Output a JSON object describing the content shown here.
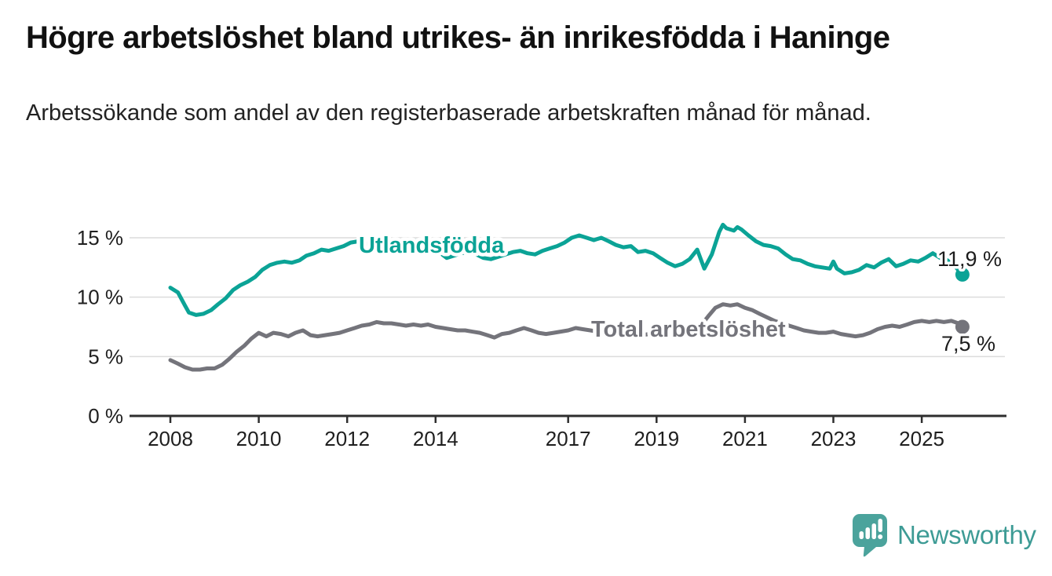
{
  "header": {
    "title": "Högre arbetslöshet bland utrikes- än inrikesfödda i Haninge",
    "subtitle": "Arbetssökande som andel av den registerbaserade arbetskraften månad för månad."
  },
  "footer": {
    "brand": "Newsworthy",
    "brand_color": "#3d9b95",
    "logo_icon": "bar-chart-speech-bubble"
  },
  "chart_data": {
    "type": "line",
    "title": "Högre arbetslöshet bland utrikes- än inrikesfödda i Haninge",
    "subtitle": "Arbetssökande som andel av den registerbaserade arbetskraften månad för månad.",
    "grid": true,
    "legend": "inline-labels",
    "x_axis": {
      "ticks": [
        2008,
        2010,
        2012,
        2014,
        2017,
        2019,
        2021,
        2023,
        2025
      ],
      "range": [
        2008,
        2026
      ]
    },
    "y_axis": {
      "unit": "%",
      "ticks": [
        0,
        5,
        10,
        15
      ],
      "tick_labels": [
        "0 %",
        "5 %",
        "10 %",
        "15 %"
      ],
      "range": [
        0,
        16.5
      ]
    },
    "series": [
      {
        "name": "Utlandsfödda",
        "color": "#0ba396",
        "end_value": 11.9,
        "end_label": "11,9 %",
        "points": [
          [
            2008.0,
            10.8
          ],
          [
            2008.17,
            10.4
          ],
          [
            2008.33,
            9.3
          ],
          [
            2008.42,
            8.7
          ],
          [
            2008.58,
            8.5
          ],
          [
            2008.75,
            8.6
          ],
          [
            2008.92,
            8.9
          ],
          [
            2009.08,
            9.4
          ],
          [
            2009.25,
            9.9
          ],
          [
            2009.42,
            10.6
          ],
          [
            2009.58,
            11.0
          ],
          [
            2009.75,
            11.3
          ],
          [
            2009.92,
            11.7
          ],
          [
            2010.08,
            12.3
          ],
          [
            2010.25,
            12.7
          ],
          [
            2010.42,
            12.9
          ],
          [
            2010.58,
            13.0
          ],
          [
            2010.75,
            12.9
          ],
          [
            2010.92,
            13.1
          ],
          [
            2011.08,
            13.5
          ],
          [
            2011.25,
            13.7
          ],
          [
            2011.42,
            14.0
          ],
          [
            2011.58,
            13.9
          ],
          [
            2011.75,
            14.1
          ],
          [
            2011.92,
            14.3
          ],
          [
            2012.08,
            14.6
          ],
          [
            2012.25,
            14.7
          ],
          [
            2012.42,
            14.5
          ],
          [
            2012.58,
            14.6
          ],
          [
            2012.75,
            14.5
          ],
          [
            2012.92,
            14.6
          ],
          [
            2013.08,
            14.7
          ],
          [
            2013.25,
            14.6
          ],
          [
            2013.42,
            14.8
          ],
          [
            2013.58,
            14.7
          ],
          [
            2013.75,
            14.5
          ],
          [
            2013.92,
            14.3
          ],
          [
            2014.08,
            13.8
          ],
          [
            2014.25,
            13.3
          ],
          [
            2014.42,
            13.5
          ],
          [
            2014.58,
            13.7
          ],
          [
            2014.75,
            13.8
          ],
          [
            2014.92,
            13.6
          ],
          [
            2015.08,
            13.3
          ],
          [
            2015.25,
            13.2
          ],
          [
            2015.42,
            13.4
          ],
          [
            2015.58,
            13.6
          ],
          [
            2015.75,
            13.8
          ],
          [
            2015.92,
            13.9
          ],
          [
            2016.08,
            13.7
          ],
          [
            2016.25,
            13.6
          ],
          [
            2016.42,
            13.9
          ],
          [
            2016.58,
            14.1
          ],
          [
            2016.75,
            14.3
          ],
          [
            2016.92,
            14.6
          ],
          [
            2017.08,
            15.0
          ],
          [
            2017.25,
            15.2
          ],
          [
            2017.42,
            15.0
          ],
          [
            2017.58,
            14.8
          ],
          [
            2017.75,
            15.0
          ],
          [
            2017.92,
            14.7
          ],
          [
            2018.08,
            14.4
          ],
          [
            2018.25,
            14.2
          ],
          [
            2018.42,
            14.3
          ],
          [
            2018.58,
            13.8
          ],
          [
            2018.75,
            13.9
          ],
          [
            2018.92,
            13.7
          ],
          [
            2019.08,
            13.3
          ],
          [
            2019.25,
            12.9
          ],
          [
            2019.42,
            12.6
          ],
          [
            2019.58,
            12.8
          ],
          [
            2019.75,
            13.2
          ],
          [
            2019.92,
            14.0
          ],
          [
            2020.08,
            12.4
          ],
          [
            2020.25,
            13.6
          ],
          [
            2020.42,
            15.5
          ],
          [
            2020.5,
            16.1
          ],
          [
            2020.58,
            15.8
          ],
          [
            2020.75,
            15.6
          ],
          [
            2020.83,
            15.9
          ],
          [
            2020.92,
            15.7
          ],
          [
            2021.08,
            15.2
          ],
          [
            2021.25,
            14.7
          ],
          [
            2021.42,
            14.4
          ],
          [
            2021.58,
            14.3
          ],
          [
            2021.75,
            14.1
          ],
          [
            2021.92,
            13.6
          ],
          [
            2022.08,
            13.2
          ],
          [
            2022.25,
            13.1
          ],
          [
            2022.42,
            12.8
          ],
          [
            2022.58,
            12.6
          ],
          [
            2022.75,
            12.5
          ],
          [
            2022.92,
            12.4
          ],
          [
            2023.0,
            13.0
          ],
          [
            2023.08,
            12.4
          ],
          [
            2023.25,
            12.0
          ],
          [
            2023.42,
            12.1
          ],
          [
            2023.58,
            12.3
          ],
          [
            2023.75,
            12.7
          ],
          [
            2023.92,
            12.5
          ],
          [
            2024.08,
            12.9
          ],
          [
            2024.25,
            13.2
          ],
          [
            2024.42,
            12.6
          ],
          [
            2024.58,
            12.8
          ],
          [
            2024.75,
            13.1
          ],
          [
            2024.92,
            13.0
          ],
          [
            2025.08,
            13.3
          ],
          [
            2025.25,
            13.7
          ],
          [
            2025.42,
            13.3
          ],
          [
            2025.58,
            13.1
          ],
          [
            2025.75,
            12.6
          ],
          [
            2025.92,
            11.9
          ]
        ]
      },
      {
        "name": "Total arbetslöshet",
        "color": "#74747b",
        "end_value": 7.5,
        "end_label": "7,5 %",
        "points": [
          [
            2008.0,
            4.7
          ],
          [
            2008.17,
            4.4
          ],
          [
            2008.33,
            4.1
          ],
          [
            2008.5,
            3.9
          ],
          [
            2008.67,
            3.9
          ],
          [
            2008.83,
            4.0
          ],
          [
            2009.0,
            4.0
          ],
          [
            2009.17,
            4.3
          ],
          [
            2009.33,
            4.8
          ],
          [
            2009.5,
            5.4
          ],
          [
            2009.67,
            5.9
          ],
          [
            2009.83,
            6.5
          ],
          [
            2010.0,
            7.0
          ],
          [
            2010.17,
            6.7
          ],
          [
            2010.33,
            7.0
          ],
          [
            2010.5,
            6.9
          ],
          [
            2010.67,
            6.7
          ],
          [
            2010.83,
            7.0
          ],
          [
            2011.0,
            7.2
          ],
          [
            2011.17,
            6.8
          ],
          [
            2011.33,
            6.7
          ],
          [
            2011.5,
            6.8
          ],
          [
            2011.67,
            6.9
          ],
          [
            2011.83,
            7.0
          ],
          [
            2012.0,
            7.2
          ],
          [
            2012.17,
            7.4
          ],
          [
            2012.33,
            7.6
          ],
          [
            2012.5,
            7.7
          ],
          [
            2012.67,
            7.9
          ],
          [
            2012.83,
            7.8
          ],
          [
            2013.0,
            7.8
          ],
          [
            2013.17,
            7.7
          ],
          [
            2013.33,
            7.6
          ],
          [
            2013.5,
            7.7
          ],
          [
            2013.67,
            7.6
          ],
          [
            2013.83,
            7.7
          ],
          [
            2014.0,
            7.5
          ],
          [
            2014.17,
            7.4
          ],
          [
            2014.33,
            7.3
          ],
          [
            2014.5,
            7.2
          ],
          [
            2014.67,
            7.2
          ],
          [
            2014.83,
            7.1
          ],
          [
            2015.0,
            7.0
          ],
          [
            2015.17,
            6.8
          ],
          [
            2015.33,
            6.6
          ],
          [
            2015.5,
            6.9
          ],
          [
            2015.67,
            7.0
          ],
          [
            2015.83,
            7.2
          ],
          [
            2016.0,
            7.4
          ],
          [
            2016.17,
            7.2
          ],
          [
            2016.33,
            7.0
          ],
          [
            2016.5,
            6.9
          ],
          [
            2016.67,
            7.0
          ],
          [
            2016.83,
            7.1
          ],
          [
            2017.0,
            7.2
          ],
          [
            2017.17,
            7.4
          ],
          [
            2017.33,
            7.3
          ],
          [
            2017.5,
            7.2
          ],
          [
            2017.67,
            7.1
          ],
          [
            2017.83,
            7.0
          ],
          [
            2018.0,
            7.0
          ],
          [
            2018.17,
            6.9
          ],
          [
            2018.33,
            6.8
          ],
          [
            2018.5,
            6.7
          ],
          [
            2018.67,
            6.8
          ],
          [
            2018.83,
            6.9
          ],
          [
            2019.0,
            6.9
          ],
          [
            2019.17,
            7.0
          ],
          [
            2019.33,
            7.1
          ],
          [
            2019.5,
            7.1
          ],
          [
            2019.67,
            7.2
          ],
          [
            2019.83,
            7.3
          ],
          [
            2020.0,
            7.6
          ],
          [
            2020.17,
            8.4
          ],
          [
            2020.33,
            9.1
          ],
          [
            2020.5,
            9.4
          ],
          [
            2020.67,
            9.3
          ],
          [
            2020.83,
            9.4
          ],
          [
            2021.0,
            9.1
          ],
          [
            2021.17,
            8.9
          ],
          [
            2021.33,
            8.6
          ],
          [
            2021.5,
            8.3
          ],
          [
            2021.67,
            8.0
          ],
          [
            2021.83,
            7.8
          ],
          [
            2022.0,
            7.6
          ],
          [
            2022.17,
            7.4
          ],
          [
            2022.33,
            7.2
          ],
          [
            2022.5,
            7.1
          ],
          [
            2022.67,
            7.0
          ],
          [
            2022.83,
            7.0
          ],
          [
            2023.0,
            7.1
          ],
          [
            2023.17,
            6.9
          ],
          [
            2023.33,
            6.8
          ],
          [
            2023.5,
            6.7
          ],
          [
            2023.67,
            6.8
          ],
          [
            2023.83,
            7.0
          ],
          [
            2024.0,
            7.3
          ],
          [
            2024.17,
            7.5
          ],
          [
            2024.33,
            7.6
          ],
          [
            2024.5,
            7.5
          ],
          [
            2024.67,
            7.7
          ],
          [
            2024.83,
            7.9
          ],
          [
            2025.0,
            8.0
          ],
          [
            2025.17,
            7.9
          ],
          [
            2025.33,
            8.0
          ],
          [
            2025.5,
            7.9
          ],
          [
            2025.67,
            8.0
          ],
          [
            2025.83,
            7.8
          ],
          [
            2025.92,
            7.5
          ]
        ]
      }
    ]
  }
}
